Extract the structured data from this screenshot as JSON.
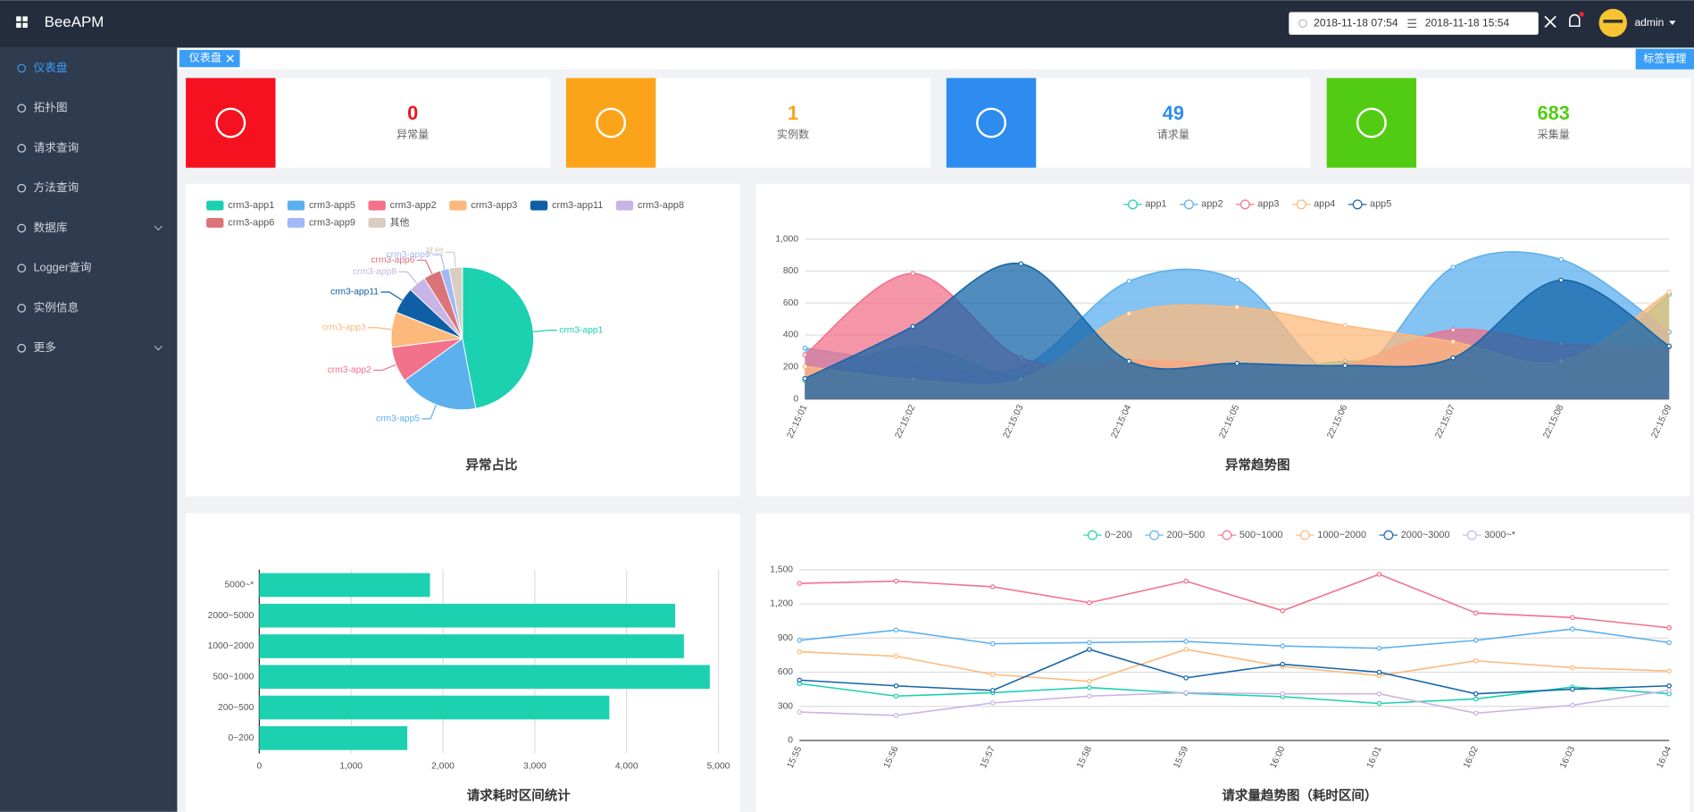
{
  "header": {
    "brand": "BeeAPM",
    "date_start": "2018-11-18 07:54",
    "date_end": "2018-11-18 15:54",
    "user": "admin"
  },
  "sidebar": {
    "items": [
      "仪表盘",
      "拓扑图",
      "请求查询",
      "方法查询",
      "数据库",
      "Logger查询",
      "实例信息",
      "更多"
    ]
  },
  "tabs": {
    "active": "仪表盘",
    "manage": "标签管理"
  },
  "cards": [
    {
      "value": 0,
      "label": "异常量",
      "color": "#f5111f"
    },
    {
      "value": 1,
      "label": "实例数",
      "color": "#fba41a"
    },
    {
      "value": 49,
      "label": "请求量",
      "color": "#2e8cf0"
    },
    {
      "value": 683,
      "label": "采集量",
      "color": "#52cc12"
    }
  ],
  "chart_data": [
    {
      "type": "pie",
      "title": "异常占比",
      "categories": [
        "crm3-app1",
        "crm3-app5",
        "crm3-app2",
        "crm3-app3",
        "crm3-app11",
        "crm3-app8",
        "crm3-app6",
        "crm3-app9",
        "其他"
      ],
      "values": [
        47,
        18,
        8,
        8,
        6,
        4,
        4,
        2,
        3
      ],
      "colors": [
        "#1bd1b0",
        "#5cb0ee",
        "#f2718b",
        "#fdb97c",
        "#0e5fa5",
        "#c8b4e6",
        "#db7479",
        "#a2b9f7",
        "#d9cdc2"
      ]
    },
    {
      "type": "area",
      "title": "异常趋势图",
      "categories": [
        "22:15:01",
        "22:15:02",
        "22:15:03",
        "22:15:04",
        "22:15:05",
        "22:15:06",
        "22:15:07",
        "22:15:08",
        "22:15:09"
      ],
      "ylim": [
        0,
        1000
      ],
      "yticks": [
        0,
        200,
        400,
        600,
        800,
        {
          "value": 1000,
          "label": "1,000"
        }
      ],
      "grid": true,
      "series": [
        {
          "name": "app1",
          "color": "#1bd1b0",
          "values": [
            115,
            330,
            135,
            243,
            135,
            236,
            169,
            135,
            655
          ]
        },
        {
          "name": "app2",
          "color": "#5cb0ee",
          "values": [
            318,
            223,
            196,
            736,
            743,
            135,
            824,
            872,
            419
          ]
        },
        {
          "name": "app3",
          "color": "#f2718b",
          "values": [
            277,
            784,
            257,
            243,
            223,
            216,
            432,
            345,
            324
          ]
        },
        {
          "name": "app4",
          "color": "#fdb97c",
          "values": [
            203,
            122,
            122,
            534,
            574,
            459,
            358,
            236,
            669
          ]
        },
        {
          "name": "app5",
          "color": "#1565a8",
          "values": [
            128,
            453,
            845,
            236,
            223,
            209,
            257,
            743,
            331
          ]
        }
      ]
    },
    {
      "type": "hbar",
      "title": "请求耗时区间统计",
      "categories": [
        "0~200",
        "200~500",
        "500~1000",
        "1000~2000",
        "2000~5000",
        "5000~*"
      ],
      "values": [
        1612,
        3812,
        4906,
        4624,
        4529,
        1859
      ],
      "color": "#1bd1b0",
      "xlim": [
        0,
        5000
      ],
      "xticks": [
        0,
        {
          "value": 1000,
          "label": "1,000"
        },
        {
          "value": 2000,
          "label": "2,000"
        },
        {
          "value": 3000,
          "label": "3,000"
        },
        {
          "value": 4000,
          "label": "4,000"
        },
        {
          "value": 5000,
          "label": "5,000"
        }
      ],
      "grid": true
    },
    {
      "type": "line",
      "title": "请求量趋势图（耗时区间）",
      "categories": [
        "15:55",
        "15:56",
        "15:57",
        "15:58",
        "15:59",
        "16:00",
        "16:01",
        "16:02",
        "16:03",
        "16:04"
      ],
      "ylim": [
        0,
        1500
      ],
      "yticks": [
        0,
        300,
        600,
        900,
        {
          "value": 1200,
          "label": "1,200"
        },
        {
          "value": 1500,
          "label": "1,500"
        }
      ],
      "grid": true,
      "series": [
        {
          "name": "0~200",
          "color": "#1bd1b0",
          "values": [
            500,
            390,
            420,
            465,
            415,
            385,
            325,
            365,
            470,
            410
          ]
        },
        {
          "name": "200~500",
          "color": "#5cb0ee",
          "values": [
            880,
            970,
            850,
            860,
            870,
            830,
            810,
            880,
            980,
            860
          ]
        },
        {
          "name": "500~1000",
          "color": "#f2718b",
          "values": [
            1380,
            1400,
            1350,
            1210,
            1400,
            1140,
            1460,
            1120,
            1080,
            990
          ]
        },
        {
          "name": "1000~2000",
          "color": "#fdb97c",
          "values": [
            780,
            740,
            580,
            520,
            800,
            650,
            570,
            700,
            640,
            610
          ]
        },
        {
          "name": "2000~3000",
          "color": "#1565a8",
          "values": [
            530,
            480,
            440,
            800,
            550,
            670,
            600,
            410,
            450,
            480
          ]
        },
        {
          "name": "3000~*",
          "color": "#c8b4e6",
          "values": [
            250,
            220,
            330,
            390,
            420,
            410,
            410,
            240,
            310,
            440
          ]
        }
      ]
    }
  ]
}
